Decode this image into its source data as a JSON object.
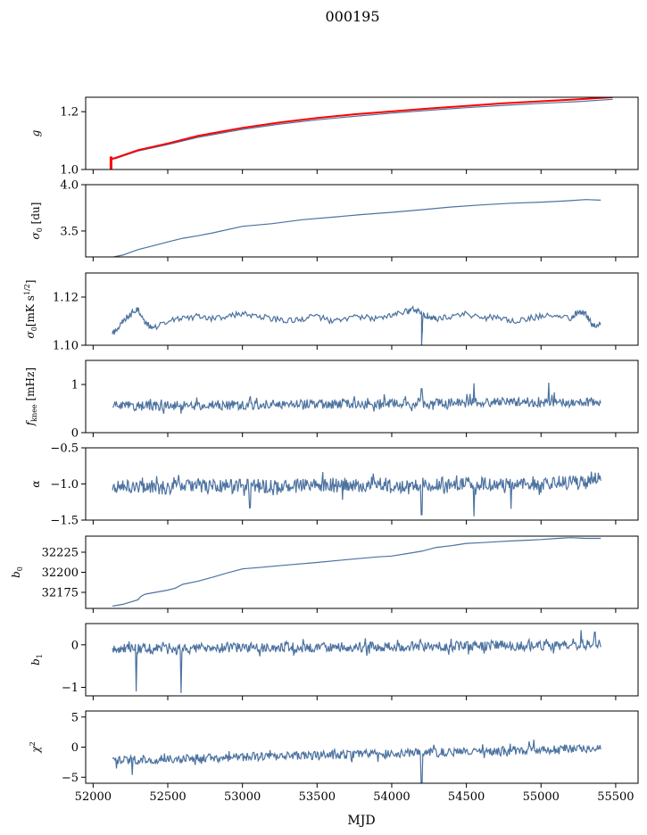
{
  "figure": {
    "title": "000195",
    "xlabel": "MJD"
  },
  "colors": {
    "series": "#4c72a0",
    "overlay": "#ff0000",
    "axis": "#000000"
  },
  "chart_data": [
    {
      "type": "line",
      "ylabel": "g",
      "xlim": [
        51950,
        55650
      ],
      "ylim": [
        1.0,
        1.25
      ],
      "yticks": [
        1.0,
        1.2
      ],
      "ytick_labels": [
        "1.0",
        "1.2"
      ],
      "series": [
        {
          "color": "#4c72a0",
          "x": [
            52125,
            52150,
            52300,
            52500,
            52700,
            53000,
            53250,
            53500,
            53750,
            54000,
            54250,
            54500,
            54750,
            55000,
            55250,
            55480
          ],
          "y": [
            1.035,
            1.038,
            1.064,
            1.086,
            1.111,
            1.139,
            1.157,
            1.172,
            1.184,
            1.195,
            1.205,
            1.214,
            1.222,
            1.229,
            1.235,
            1.243
          ]
        },
        {
          "color": "#ff0000",
          "x": [
            52125,
            52150,
            52300,
            52500,
            52700,
            53000,
            53250,
            53500,
            53750,
            54000,
            54250,
            54500,
            54750,
            55000,
            55250,
            55480
          ],
          "y": [
            1.037,
            1.04,
            1.067,
            1.09,
            1.116,
            1.144,
            1.163,
            1.178,
            1.191,
            1.201,
            1.211,
            1.22,
            1.229,
            1.236,
            1.243,
            1.25
          ]
        },
        {
          "color": "#ff0000",
          "x": [
            52120,
            52120
          ],
          "y": [
            1.0,
            1.045
          ]
        }
      ]
    },
    {
      "type": "line",
      "ylabel": "σ0 [du]",
      "xlim": [
        51950,
        55650
      ],
      "ylim": [
        3.22,
        4.0
      ],
      "yticks": [
        3.5,
        4.0
      ],
      "ytick_labels": [
        "3.5",
        "4.0"
      ],
      "series": [
        {
          "color": "#4c72a0",
          "x": [
            52130,
            52200,
            52300,
            52400,
            52500,
            52600,
            52700,
            52800,
            53000,
            53200,
            53400,
            53600,
            53800,
            54000,
            54200,
            54400,
            54600,
            54800,
            55000,
            55200,
            55300,
            55400
          ],
          "y": [
            3.22,
            3.24,
            3.3,
            3.34,
            3.38,
            3.42,
            3.45,
            3.48,
            3.55,
            3.58,
            3.62,
            3.65,
            3.68,
            3.7,
            3.73,
            3.76,
            3.78,
            3.8,
            3.81,
            3.83,
            3.84,
            3.83
          ]
        }
      ]
    },
    {
      "type": "line",
      "ylabel": "σ0[mK s^1/2]",
      "xlim": [
        51950,
        55650
      ],
      "ylim": [
        1.1,
        1.13
      ],
      "yticks": [
        1.1,
        1.12
      ],
      "ytick_labels": [
        "1.10",
        "1.12"
      ],
      "series": [
        {
          "color": "#4c72a0",
          "x": [
            52130,
            52150,
            52200,
            52250,
            52300,
            52350,
            52400,
            52500,
            52600,
            52700,
            52800,
            52900,
            53000,
            53100,
            53200,
            53300,
            53400,
            53500,
            53600,
            53700,
            53800,
            53900,
            54000,
            54100,
            54150,
            54200,
            54200,
            54210,
            54250,
            54300,
            54400,
            54500,
            54600,
            54700,
            54800,
            54900,
            55000,
            55100,
            55200,
            55250,
            55300,
            55350,
            55400
          ],
          "y": [
            1.105,
            1.106,
            1.11,
            1.113,
            1.115,
            1.109,
            1.107,
            1.11,
            1.111,
            1.112,
            1.111,
            1.112,
            1.113,
            1.112,
            1.111,
            1.11,
            1.111,
            1.112,
            1.11,
            1.111,
            1.112,
            1.111,
            1.113,
            1.114,
            1.115,
            1.113,
            1.1,
            1.113,
            1.112,
            1.111,
            1.112,
            1.113,
            1.111,
            1.112,
            1.11,
            1.111,
            1.112,
            1.113,
            1.111,
            1.114,
            1.113,
            1.108,
            1.109
          ]
        }
      ]
    },
    {
      "type": "line",
      "ylabel": "f_knee [mHz]",
      "xlim": [
        51950,
        55650
      ],
      "ylim": [
        0,
        1.5
      ],
      "yticks": [
        0,
        1
      ],
      "ytick_labels": [
        "0",
        "1"
      ],
      "series": [
        {
          "color": "#4c72a0",
          "x": [
            52130,
            55400
          ],
          "y": [
            0.55,
            0.65
          ]
        }
      ]
    },
    {
      "type": "line",
      "ylabel": "α",
      "xlim": [
        51950,
        55650
      ],
      "ylim": [
        -1.5,
        -0.5
      ],
      "yticks": [
        -1.5,
        -1.0,
        -0.5
      ],
      "ytick_labels": [
        "−1.5",
        "−1.0",
        "−0.5"
      ],
      "series": [
        {
          "color": "#4c72a0",
          "x": [
            52130,
            55400
          ],
          "y": [
            -1.05,
            -0.98
          ]
        }
      ]
    },
    {
      "type": "line",
      "ylabel": "b0",
      "xlim": [
        51950,
        55650
      ],
      "ylim": [
        32155,
        32245
      ],
      "yticks": [
        32175,
        32200,
        32225
      ],
      "ytick_labels": [
        "32175",
        "32200",
        "32225"
      ],
      "series": [
        {
          "color": "#4c72a0",
          "x": [
            52130,
            52200,
            52300,
            52320,
            52350,
            52500,
            52550,
            52600,
            52700,
            52800,
            52900,
            53000,
            53100,
            53300,
            53500,
            53700,
            53900,
            54000,
            54100,
            54200,
            54300,
            54400,
            54500,
            54600,
            54700,
            54800,
            54900,
            55000,
            55100,
            55200,
            55300,
            55400
          ],
          "y": [
            32158,
            32160,
            32166,
            32170,
            32173,
            32178,
            32180,
            32185,
            32189,
            32194,
            32199,
            32204,
            32206,
            32209,
            32212,
            32216,
            32219,
            32220,
            32223,
            32226,
            32231,
            32233,
            32236,
            32237,
            32238,
            32239,
            32240,
            32241,
            32242,
            32243,
            32242,
            32242
          ]
        }
      ]
    },
    {
      "type": "line",
      "ylabel": "b1",
      "xlim": [
        51950,
        55650
      ],
      "ylim": [
        -1.2,
        0.5
      ],
      "yticks": [
        -1,
        0
      ],
      "ytick_labels": [
        "−1",
        "0"
      ],
      "series": [
        {
          "color": "#4c72a0",
          "x": [
            52130,
            55400
          ],
          "y": [
            -0.1,
            0.0
          ]
        }
      ]
    },
    {
      "type": "line",
      "ylabel": "χ²",
      "xlim": [
        51950,
        55650
      ],
      "ylim": [
        -6,
        6
      ],
      "yticks": [
        -5,
        0,
        5
      ],
      "ytick_labels": [
        "−5",
        "0",
        "5"
      ],
      "xticks": [
        52000,
        52500,
        53000,
        53500,
        54000,
        54500,
        55000,
        55500
      ],
      "xtick_labels": [
        "52000",
        "52500",
        "53000",
        "53500",
        "54000",
        "54500",
        "55000",
        "55500"
      ],
      "series": [
        {
          "color": "#4c72a0",
          "x": [
            52130,
            55400
          ],
          "y": [
            -2.2,
            -0.2
          ]
        }
      ]
    }
  ]
}
